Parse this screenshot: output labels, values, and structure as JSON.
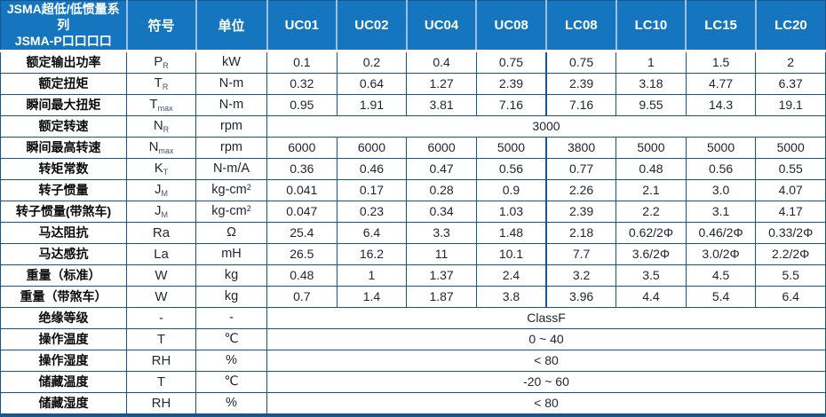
{
  "header": {
    "series_title_line1": "JSMA超低/低惯量系列",
    "series_title_line2": "JSMA-P口口口口",
    "symbol_col": "符号",
    "unit_col": "单位",
    "models": [
      "UC01",
      "UC02",
      "UC04",
      "UC08",
      "LC08",
      "LC10",
      "LC15",
      "LC20"
    ]
  },
  "colors": {
    "header_bg": "#1576bf",
    "header_divider": "#9dbfdd",
    "border": "#17568f",
    "header_text": "#ffffff",
    "body_text": "#1d2430"
  },
  "rows": [
    {
      "label": "额定输出功率",
      "symbol": "P",
      "symbol_sub": "R",
      "unit": "kW",
      "values": [
        "0.1",
        "0.2",
        "0.4",
        "0.75",
        "0.75",
        "1",
        "1.5",
        "2"
      ]
    },
    {
      "label": "额定扭矩",
      "symbol": "T",
      "symbol_sub": "R",
      "unit": "N-m",
      "values": [
        "0.32",
        "0.64",
        "1.27",
        "2.39",
        "2.39",
        "3.18",
        "4.77",
        "6.37"
      ]
    },
    {
      "label": "瞬间最大扭矩",
      "symbol": "T",
      "symbol_sub": "max",
      "unit": "N-m",
      "values": [
        "0.95",
        "1.91",
        "3.81",
        "7.16",
        "7.16",
        "9.55",
        "14.3",
        "19.1"
      ]
    },
    {
      "label": "额定转速",
      "symbol": "N",
      "symbol_sub": "R",
      "unit": "rpm",
      "merged": "3000"
    },
    {
      "label": "瞬间最高转速",
      "symbol": "N",
      "symbol_sub": "max",
      "unit": "rpm",
      "values": [
        "6000",
        "6000",
        "6000",
        "5000",
        "3800",
        "5000",
        "5000",
        "5000"
      ]
    },
    {
      "label": "转矩常数",
      "symbol": "K",
      "symbol_sub": "T",
      "unit": "N-m/A",
      "values": [
        "0.36",
        "0.46",
        "0.47",
        "0.56",
        "0.77",
        "0.48",
        "0.56",
        "0.55"
      ]
    },
    {
      "label": "转子惯量",
      "symbol": "J",
      "symbol_sub": "M",
      "unit": "kg-cm",
      "unit_sup": "2",
      "values": [
        "0.041",
        "0.17",
        "0.28",
        "0.9",
        "2.26",
        "2.1",
        "3.0",
        "4.07"
      ]
    },
    {
      "label": "转子惯量(带煞车)",
      "symbol": "J",
      "symbol_sub": "M",
      "unit": "kg-cm",
      "unit_sup": "2",
      "values": [
        "0.047",
        "0.23",
        "0.34",
        "1.03",
        "2.39",
        "2.2",
        "3.1",
        "4.17"
      ]
    },
    {
      "label": "马达阻抗",
      "symbol": "Ra",
      "unit": "Ω",
      "values": [
        "25.4",
        "6.4",
        "3.3",
        "1.48",
        "2.18",
        "0.62/2Φ",
        "0.46/2Φ",
        "0.33/2Φ"
      ]
    },
    {
      "label": "马达感抗",
      "symbol": "La",
      "unit": "mH",
      "values": [
        "26.5",
        "16.2",
        "11",
        "10.1",
        "7.7",
        "3.6/2Φ",
        "3.0/2Φ",
        "2.2/2Φ"
      ]
    },
    {
      "label": "重量（标准）",
      "symbol": "W",
      "unit": "kg",
      "values": [
        "0.48",
        "1",
        "1.37",
        "2.4",
        "3.2",
        "3.5",
        "4.5",
        "5.5"
      ]
    },
    {
      "label": "重量（带煞车）",
      "symbol": "W",
      "unit": "kg",
      "values": [
        "0.7",
        "1.4",
        "1.87",
        "3.8",
        "3.96",
        "4.4",
        "5.4",
        "6.4"
      ]
    },
    {
      "label": "绝缘等级",
      "symbol": "-",
      "unit": "-",
      "merged": "ClassF"
    },
    {
      "label": "操作温度",
      "symbol": "T",
      "unit": "℃",
      "merged": "0 ~ 40"
    },
    {
      "label": "操作湿度",
      "symbol": "RH",
      "unit": "%",
      "merged": "< 80"
    },
    {
      "label": "储藏温度",
      "symbol": "T",
      "unit": "℃",
      "merged": "-20 ~ 60"
    },
    {
      "label": "储藏湿度",
      "symbol": "RH",
      "unit": "%",
      "merged": "< 80"
    }
  ]
}
